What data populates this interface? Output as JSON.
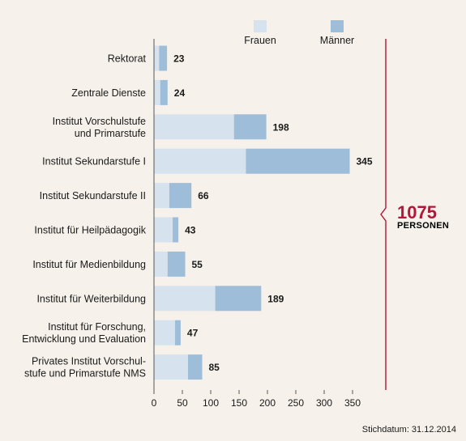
{
  "chart_data": {
    "type": "bar",
    "stacked": true,
    "orientation": "horizontal",
    "categories": [
      [
        "Rektorat"
      ],
      [
        "Zentrale Dienste"
      ],
      [
        "Institut Vorschulstufe",
        "und Primarstufe"
      ],
      [
        "Institut Sekundarstufe I"
      ],
      [
        "Institut Sekundarstufe II"
      ],
      [
        "Institut für Heilpädagogik"
      ],
      [
        "Institut für Medienbildung"
      ],
      [
        "Institut für Weiterbildung"
      ],
      [
        "Institut für Forschung,",
        "Entwicklung und Evaluation"
      ],
      [
        "Privates Institut Vorschul-",
        "stufe und Primarstufe NMS"
      ]
    ],
    "series": [
      {
        "name": "Frauen",
        "color": "#d6e3ef",
        "values": [
          9,
          11,
          141,
          162,
          27,
          33,
          24,
          108,
          37,
          60
        ]
      },
      {
        "name": "Männer",
        "color": "#9ebdd9",
        "values": [
          14,
          13,
          57,
          183,
          39,
          10,
          31,
          81,
          10,
          25
        ]
      }
    ],
    "totals": [
      "23",
      "24",
      "198",
      "345",
      "66",
      "43",
      "55",
      "189",
      "47",
      "85"
    ],
    "xlim": [
      0,
      350
    ],
    "xticks": [
      "0",
      "50",
      "100",
      "150",
      "200",
      "250",
      "300",
      "350"
    ],
    "legend_position": "top-right"
  },
  "summary": {
    "total_value": "1075",
    "total_unit": "PERSONEN",
    "accent_color": "#b0173a"
  },
  "footnote": "Stichdatum: 31.12.2014"
}
